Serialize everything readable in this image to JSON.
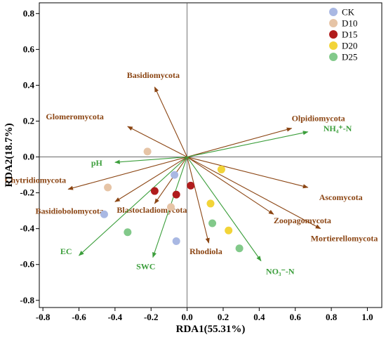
{
  "chart_data": {
    "type": "scatter",
    "subtype": "RDA biplot",
    "xlabel": "RDA1(55.31%)",
    "ylabel": "RDA2(18.7%)",
    "xlim": [
      -0.82,
      1.08
    ],
    "ylim": [
      -0.84,
      0.86
    ],
    "xticks": [
      -0.8,
      -0.6,
      -0.4,
      -0.2,
      0.0,
      0.2,
      0.4,
      0.6,
      0.8,
      1.0
    ],
    "yticks": [
      -0.8,
      -0.6,
      -0.4,
      -0.2,
      0.0,
      0.2,
      0.4,
      0.6,
      0.8
    ],
    "xtick_labels": [
      "-0.8",
      "-0.6",
      "-0.4",
      "-0.2",
      "0.0",
      "0.2",
      "0.4",
      "0.6",
      "0.8",
      "1.0"
    ],
    "ytick_labels": [
      "-0.8",
      "-0.6",
      "-0.4",
      "-0.2",
      "0.0",
      "0.2",
      "0.4",
      "0.6",
      "0.8"
    ],
    "grid": false,
    "reference_lines": [
      0,
      0
    ],
    "legend_position": "top-right",
    "series": [
      {
        "name": "CK",
        "color": "#a9b8e3",
        "points": [
          [
            -0.07,
            -0.1
          ],
          [
            -0.46,
            -0.32
          ],
          [
            -0.06,
            -0.47
          ]
        ]
      },
      {
        "name": "D10",
        "color": "#e6c4a6",
        "points": [
          [
            -0.22,
            0.03
          ],
          [
            -0.44,
            -0.17
          ],
          [
            -0.09,
            -0.28
          ]
        ]
      },
      {
        "name": "D15",
        "color": "#b01c1c",
        "points": [
          [
            -0.18,
            -0.19
          ],
          [
            -0.06,
            -0.21
          ],
          [
            0.02,
            -0.16
          ]
        ]
      },
      {
        "name": "D20",
        "color": "#f2d438",
        "points": [
          [
            0.19,
            -0.07
          ],
          [
            0.13,
            -0.26
          ],
          [
            0.23,
            -0.41
          ]
        ]
      },
      {
        "name": "D25",
        "color": "#82c98a",
        "points": [
          [
            -0.33,
            -0.42
          ],
          [
            0.14,
            -0.37
          ],
          [
            0.29,
            -0.51
          ]
        ]
      }
    ],
    "species_vectors": {
      "color": "#8b4513",
      "items": [
        {
          "name": "Basidiomycota",
          "x": -0.18,
          "y": 0.39
        },
        {
          "name": "Glomeromycota",
          "x": -0.33,
          "y": 0.17
        },
        {
          "name": "Olpidiomycota",
          "x": 0.58,
          "y": 0.16
        },
        {
          "name": "Chytridiomycota",
          "x": -0.66,
          "y": -0.18
        },
        {
          "name": "Basidiobolomycota",
          "x": -0.4,
          "y": -0.25
        },
        {
          "name": "Blastocladiomycota",
          "x": -0.18,
          "y": -0.26
        },
        {
          "name": "Ascomycota",
          "x": 0.67,
          "y": -0.17
        },
        {
          "name": "Zoopagomycota",
          "x": 0.48,
          "y": -0.32
        },
        {
          "name": "Mortierellomycota",
          "x": 0.74,
          "y": -0.4
        },
        {
          "name": "Rhodiola",
          "x": 0.12,
          "y": -0.48
        }
      ]
    },
    "environment_vectors": {
      "color": "#3b9e3b",
      "items": [
        {
          "name": "NH₄⁺-N",
          "x": 0.67,
          "y": 0.14
        },
        {
          "name": "pH",
          "x": -0.4,
          "y": -0.03
        },
        {
          "name": "EC",
          "x": -0.6,
          "y": -0.55
        },
        {
          "name": "SWC",
          "x": -0.19,
          "y": -0.56
        },
        {
          "name": "NO₃⁻-N",
          "x": 0.41,
          "y": -0.58
        }
      ]
    }
  }
}
